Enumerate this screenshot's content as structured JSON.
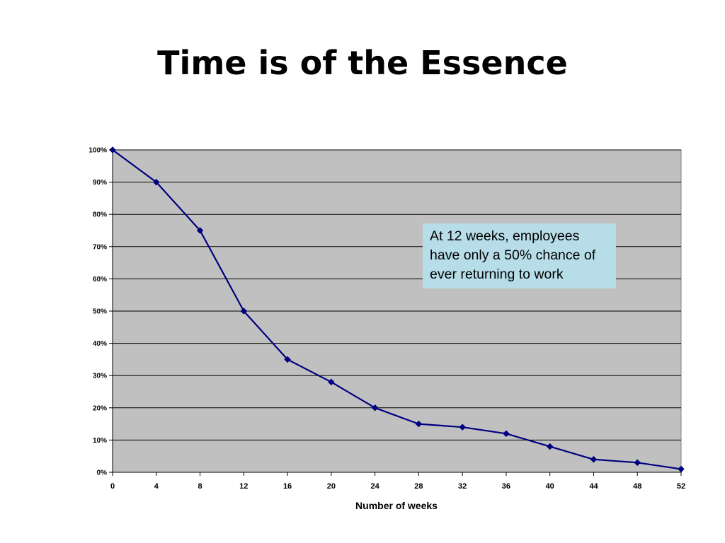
{
  "slide": {
    "title": "Time is of the Essence"
  },
  "annotation": {
    "text": "At 12 weeks, employees have only a 50% chance of ever returning to work",
    "background": "#b7dde8"
  },
  "chart_data": {
    "type": "line",
    "title": "",
    "xlabel": "Number of weeks",
    "ylabel": "",
    "x": [
      0,
      4,
      8,
      12,
      16,
      20,
      24,
      28,
      32,
      36,
      40,
      44,
      48,
      52
    ],
    "series": [
      {
        "values": [
          100,
          90,
          75,
          50,
          35,
          28,
          20,
          15,
          14,
          12,
          8,
          4,
          3,
          1
        ],
        "color": "#000080",
        "marker": "diamond"
      }
    ],
    "xlim": [
      0,
      52
    ],
    "ylim": [
      0,
      100
    ],
    "x_ticks": [
      0,
      4,
      8,
      12,
      16,
      20,
      24,
      28,
      32,
      36,
      40,
      44,
      48,
      52
    ],
    "y_ticks": [
      "0%",
      "10%",
      "20%",
      "30%",
      "40%",
      "50%",
      "60%",
      "70%",
      "80%",
      "90%",
      "100%"
    ],
    "grid": "horizontal",
    "plot_background": "#c0c0c0",
    "legend": "none"
  }
}
